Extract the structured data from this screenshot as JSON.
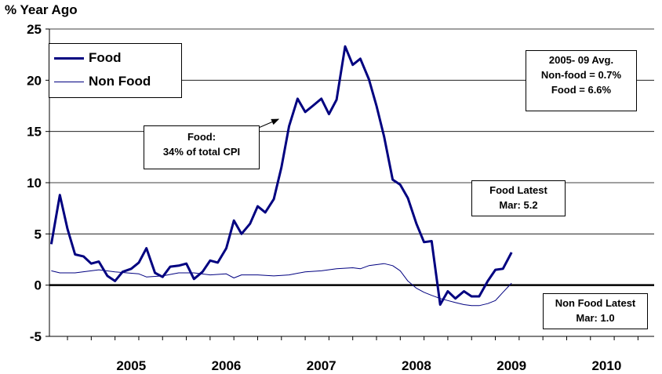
{
  "chart_data": {
    "type": "line",
    "ylabel": "% Year Ago",
    "ylim": [
      -5,
      25
    ],
    "yticks": [
      25,
      20,
      15,
      10,
      5,
      0,
      -5
    ],
    "xlim": [
      2004.56,
      2010.92
    ],
    "year_labels": [
      {
        "label": "2005",
        "x": 2005.0
      },
      {
        "label": "2006",
        "x": 2006.0
      },
      {
        "label": "2007",
        "x": 2007.0
      },
      {
        "label": "2008",
        "x": 2008.0
      },
      {
        "label": "2009",
        "x": 2009.0
      },
      {
        "label": "2010",
        "x": 2010.0
      }
    ],
    "minor_tick_step": 0.25,
    "grid": true,
    "legend_position": "top-left",
    "series": [
      {
        "name": "Food",
        "color": "#000080",
        "width": "thick",
        "points": [
          [
            2004.58,
            4.0
          ],
          [
            2004.67,
            8.8
          ],
          [
            2004.75,
            5.5
          ],
          [
            2004.83,
            3.0
          ],
          [
            2004.92,
            2.8
          ],
          [
            2005.0,
            2.1
          ],
          [
            2005.08,
            2.3
          ],
          [
            2005.17,
            0.9
          ],
          [
            2005.25,
            0.4
          ],
          [
            2005.33,
            1.3
          ],
          [
            2005.42,
            1.6
          ],
          [
            2005.5,
            2.2
          ],
          [
            2005.58,
            3.6
          ],
          [
            2005.67,
            1.2
          ],
          [
            2005.75,
            0.8
          ],
          [
            2005.83,
            1.8
          ],
          [
            2005.92,
            1.9
          ],
          [
            2006.0,
            2.1
          ],
          [
            2006.08,
            0.6
          ],
          [
            2006.17,
            1.3
          ],
          [
            2006.25,
            2.4
          ],
          [
            2006.33,
            2.2
          ],
          [
            2006.42,
            3.6
          ],
          [
            2006.5,
            6.3
          ],
          [
            2006.58,
            5.0
          ],
          [
            2006.67,
            6.0
          ],
          [
            2006.75,
            7.7
          ],
          [
            2006.83,
            7.1
          ],
          [
            2006.92,
            8.4
          ],
          [
            2007.0,
            11.5
          ],
          [
            2007.08,
            15.5
          ],
          [
            2007.17,
            18.2
          ],
          [
            2007.25,
            16.9
          ],
          [
            2007.33,
            17.5
          ],
          [
            2007.42,
            18.2
          ],
          [
            2007.5,
            16.7
          ],
          [
            2007.58,
            18.1
          ],
          [
            2007.67,
            23.3
          ],
          [
            2007.75,
            21.5
          ],
          [
            2007.83,
            22.1
          ],
          [
            2007.92,
            20.1
          ],
          [
            2008.0,
            17.5
          ],
          [
            2008.08,
            14.5
          ],
          [
            2008.17,
            10.3
          ],
          [
            2008.25,
            9.8
          ],
          [
            2008.33,
            8.5
          ],
          [
            2008.42,
            6.0
          ],
          [
            2008.5,
            4.2
          ],
          [
            2008.58,
            4.3
          ],
          [
            2008.67,
            -1.9
          ],
          [
            2008.75,
            -0.6
          ],
          [
            2008.83,
            -1.3
          ],
          [
            2008.92,
            -0.6
          ],
          [
            2009.0,
            -1.1
          ],
          [
            2009.08,
            -1.1
          ],
          [
            2009.17,
            0.4
          ],
          [
            2009.25,
            1.5
          ],
          [
            2009.33,
            1.6
          ],
          [
            2009.42,
            3.2
          ]
        ]
      },
      {
        "name": "Non Food",
        "color": "#000080",
        "width": "thin",
        "points": [
          [
            2004.58,
            1.4
          ],
          [
            2004.67,
            1.2
          ],
          [
            2004.83,
            1.2
          ],
          [
            2005.0,
            1.4
          ],
          [
            2005.08,
            1.5
          ],
          [
            2005.25,
            1.3
          ],
          [
            2005.5,
            1.1
          ],
          [
            2005.58,
            0.8
          ],
          [
            2005.75,
            0.9
          ],
          [
            2005.92,
            1.2
          ],
          [
            2006.08,
            1.2
          ],
          [
            2006.25,
            1.0
          ],
          [
            2006.42,
            1.1
          ],
          [
            2006.5,
            0.7
          ],
          [
            2006.58,
            1.0
          ],
          [
            2006.75,
            1.0
          ],
          [
            2006.92,
            0.9
          ],
          [
            2007.08,
            1.0
          ],
          [
            2007.25,
            1.3
          ],
          [
            2007.42,
            1.4
          ],
          [
            2007.58,
            1.6
          ],
          [
            2007.75,
            1.7
          ],
          [
            2007.83,
            1.6
          ],
          [
            2007.92,
            1.9
          ],
          [
            2008.0,
            2.0
          ],
          [
            2008.08,
            2.1
          ],
          [
            2008.17,
            1.9
          ],
          [
            2008.25,
            1.4
          ],
          [
            2008.33,
            0.4
          ],
          [
            2008.42,
            -0.3
          ],
          [
            2008.5,
            -0.7
          ],
          [
            2008.58,
            -1.0
          ],
          [
            2008.67,
            -1.3
          ],
          [
            2008.75,
            -1.5
          ],
          [
            2008.83,
            -1.7
          ],
          [
            2008.92,
            -1.9
          ],
          [
            2009.0,
            -2.0
          ],
          [
            2009.08,
            -2.0
          ],
          [
            2009.17,
            -1.8
          ],
          [
            2009.25,
            -1.5
          ],
          [
            2009.33,
            -0.7
          ],
          [
            2009.42,
            0.2
          ]
        ]
      }
    ],
    "annotations": {
      "avg": [
        "2005- 09 Avg.",
        "Non-food = 0.7%",
        "Food = 6.6%"
      ],
      "food_share": [
        "Food:",
        "34% of total CPI"
      ],
      "food_latest": [
        "Food Latest",
        "Mar: 5.2"
      ],
      "nonfood_latest": [
        "Non Food Latest",
        "Mar: 1.0"
      ]
    }
  }
}
